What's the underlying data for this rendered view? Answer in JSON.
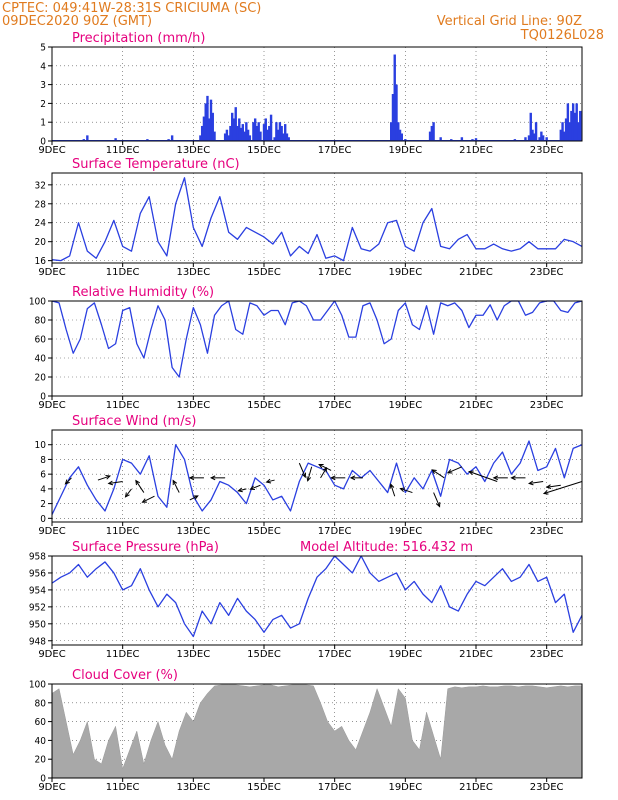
{
  "header": {
    "line1": "CPTEC:   049:41W-28:31S   CRICIUMA (SC)",
    "line2": "09DEC2020 90Z (GMT)",
    "grid_note": "Vertical Grid Line: 90Z",
    "code": "TQ0126L028"
  },
  "colors": {
    "header": "#e07b1f",
    "titles": "#e6007e",
    "series": "#2a3fe0",
    "cloud": "#a8a8a8"
  },
  "x_ticks": [
    "9DEC",
    "11DEC",
    "13DEC",
    "15DEC",
    "17DEC",
    "19DEC",
    "21DEC",
    "23DEC"
  ],
  "chart_data": [
    {
      "id": "precip",
      "type": "bar",
      "title": "Precipitation (mm/h)",
      "ylim": [
        0,
        5
      ],
      "yticks": [
        0,
        1,
        2,
        3,
        4,
        5
      ],
      "x_range_days": [
        9,
        24
      ],
      "x": [
        9.9,
        10.0,
        10.8,
        11.7,
        12.3,
        12.4,
        13.2,
        13.25,
        13.3,
        13.35,
        13.4,
        13.45,
        13.5,
        13.55,
        13.6,
        13.9,
        13.95,
        14.0,
        14.05,
        14.1,
        14.15,
        14.2,
        14.25,
        14.3,
        14.35,
        14.4,
        14.45,
        14.5,
        14.55,
        14.6,
        14.7,
        14.75,
        14.8,
        14.85,
        14.9,
        15.0,
        15.05,
        15.1,
        15.15,
        15.2,
        15.3,
        15.35,
        15.4,
        15.45,
        15.5,
        15.55,
        15.6,
        15.65,
        15.7,
        18.6,
        18.65,
        18.7,
        18.75,
        18.8,
        18.85,
        18.9,
        19.0,
        19.7,
        19.75,
        19.8,
        20.0,
        20.3,
        20.6,
        20.9,
        21.0,
        22.1,
        22.4,
        22.5,
        22.55,
        22.6,
        22.65,
        22.7,
        22.8,
        22.85,
        22.9,
        23.0,
        23.4,
        23.45,
        23.5,
        23.55,
        23.6,
        23.65,
        23.7,
        23.75,
        23.8,
        23.85,
        23.9,
        23.95
      ],
      "values": [
        0.1,
        0.3,
        0.15,
        0.1,
        0.1,
        0.3,
        0.3,
        0.8,
        1.3,
        2.0,
        2.4,
        1.2,
        2.2,
        1.5,
        0.5,
        0.4,
        0.6,
        0.3,
        0.8,
        1.5,
        1.2,
        1.8,
        0.8,
        1.2,
        0.7,
        0.9,
        0.5,
        1.0,
        0.6,
        0.3,
        1.0,
        1.2,
        0.8,
        1.0,
        0.5,
        0.9,
        1.2,
        0.6,
        0.8,
        1.4,
        0.2,
        1.0,
        0.6,
        1.0,
        0.8,
        0.4,
        0.9,
        0.4,
        0.2,
        1.0,
        2.5,
        4.6,
        3.0,
        1.0,
        0.6,
        0.4,
        0.1,
        0.5,
        0.8,
        1.0,
        0.2,
        0.1,
        0.2,
        0.1,
        0.15,
        0.1,
        0.2,
        0.3,
        1.5,
        0.6,
        0.4,
        1.0,
        0.2,
        0.5,
        0.3,
        0.2,
        0.6,
        1.0,
        0.5,
        1.2,
        2.0,
        1.0,
        1.6,
        2.0,
        1.5,
        2.0,
        1.0,
        1.6
      ]
    },
    {
      "id": "temp",
      "type": "line",
      "title": "Surface Temperature (nC)",
      "ylim": [
        15.5,
        34.5
      ],
      "yticks": [
        16,
        20,
        24,
        28,
        32
      ],
      "x": [
        9.0,
        9.25,
        9.5,
        9.75,
        10.0,
        10.25,
        10.5,
        10.75,
        11.0,
        11.25,
        11.5,
        11.75,
        12.0,
        12.25,
        12.5,
        12.75,
        13.0,
        13.25,
        13.5,
        13.75,
        14.0,
        14.25,
        14.5,
        14.75,
        15.0,
        15.25,
        15.5,
        15.75,
        16.0,
        16.25,
        16.5,
        16.75,
        17.0,
        17.25,
        17.5,
        17.75,
        18.0,
        18.25,
        18.5,
        18.75,
        19.0,
        19.25,
        19.5,
        19.75,
        20.0,
        20.25,
        20.5,
        20.75,
        21.0,
        21.25,
        21.5,
        21.75,
        22.0,
        22.25,
        22.5,
        22.75,
        23.0,
        23.25,
        23.5,
        23.75,
        24.0
      ],
      "values": [
        16.2,
        16.0,
        17.0,
        24.0,
        18.0,
        16.5,
        20.0,
        24.5,
        19.0,
        18.0,
        26.0,
        29.5,
        20.0,
        17.0,
        28.0,
        33.5,
        23.0,
        19.0,
        25.0,
        29.5,
        22.0,
        20.5,
        23.0,
        22.0,
        21.0,
        19.5,
        22.0,
        17.0,
        19.0,
        17.5,
        21.5,
        16.5,
        17.0,
        16.0,
        23.0,
        18.5,
        18.0,
        19.5,
        24.0,
        24.5,
        19.0,
        18.0,
        24.0,
        27.0,
        19.0,
        18.5,
        20.5,
        21.5,
        18.5,
        18.5,
        19.5,
        18.5,
        18.0,
        18.5,
        20.0,
        18.5,
        18.5,
        18.5,
        20.5,
        20.0,
        19.0
      ]
    },
    {
      "id": "rh",
      "type": "line",
      "title": "Relative Humidity (%)",
      "ylim": [
        0,
        100
      ],
      "yticks": [
        0,
        20,
        40,
        60,
        80,
        100
      ],
      "x": [
        9.0,
        9.2,
        9.4,
        9.6,
        9.8,
        10.0,
        10.2,
        10.4,
        10.6,
        10.8,
        11.0,
        11.2,
        11.4,
        11.6,
        11.8,
        12.0,
        12.2,
        12.4,
        12.6,
        12.8,
        13.0,
        13.2,
        13.4,
        13.6,
        13.8,
        14.0,
        14.2,
        14.4,
        14.6,
        14.8,
        15.0,
        15.2,
        15.4,
        15.6,
        15.8,
        16.0,
        16.2,
        16.4,
        16.6,
        16.8,
        17.0,
        17.2,
        17.4,
        17.6,
        17.8,
        18.0,
        18.2,
        18.4,
        18.6,
        18.8,
        19.0,
        19.2,
        19.4,
        19.6,
        19.8,
        20.0,
        20.2,
        20.4,
        20.6,
        20.8,
        21.0,
        21.2,
        21.4,
        21.6,
        21.8,
        22.0,
        22.2,
        22.4,
        22.6,
        22.8,
        23.0,
        23.2,
        23.4,
        23.6,
        23.8,
        24.0
      ],
      "values": [
        100,
        98,
        70,
        45,
        60,
        92,
        98,
        75,
        50,
        55,
        90,
        93,
        55,
        40,
        70,
        95,
        80,
        30,
        20,
        60,
        93,
        75,
        45,
        85,
        95,
        100,
        70,
        65,
        98,
        95,
        85,
        90,
        90,
        75,
        98,
        100,
        95,
        80,
        80,
        90,
        100,
        85,
        62,
        62,
        95,
        98,
        80,
        55,
        60,
        90,
        98,
        75,
        70,
        95,
        65,
        98,
        95,
        98,
        90,
        72,
        85,
        85,
        96,
        80,
        95,
        100,
        100,
        85,
        88,
        98,
        100,
        100,
        90,
        88,
        98,
        100
      ]
    },
    {
      "id": "wind",
      "type": "line",
      "title": "Surface Wind (m/s)",
      "ylim": [
        -0.5,
        12
      ],
      "yticks": [
        0,
        2,
        4,
        6,
        8,
        10
      ],
      "x": [
        9.0,
        9.25,
        9.5,
        9.75,
        10.0,
        10.25,
        10.5,
        10.75,
        11.0,
        11.25,
        11.5,
        11.75,
        12.0,
        12.25,
        12.5,
        12.75,
        13.0,
        13.25,
        13.5,
        13.75,
        14.0,
        14.25,
        14.5,
        14.75,
        15.0,
        15.25,
        15.5,
        15.75,
        16.0,
        16.25,
        16.5,
        16.75,
        17.0,
        17.25,
        17.5,
        17.75,
        18.0,
        18.25,
        18.5,
        18.75,
        19.0,
        19.25,
        19.5,
        19.75,
        20.0,
        20.25,
        20.5,
        20.75,
        21.0,
        21.25,
        21.5,
        21.75,
        22.0,
        22.25,
        22.5,
        22.75,
        23.0,
        23.25,
        23.5,
        23.75,
        24.0
      ],
      "values": [
        0.5,
        3.0,
        5.5,
        7.0,
        4.5,
        2.5,
        1.0,
        4.0,
        8.0,
        7.5,
        6.0,
        8.5,
        3.0,
        1.5,
        10.0,
        8.0,
        3.0,
        1.0,
        2.5,
        5.0,
        4.5,
        3.5,
        2.0,
        5.5,
        4.5,
        2.5,
        3.0,
        1.0,
        5.0,
        7.5,
        7.0,
        6.5,
        4.5,
        4.0,
        6.5,
        5.5,
        6.5,
        5.0,
        3.5,
        7.5,
        3.5,
        5.5,
        4.0,
        6.5,
        3.0,
        8.0,
        7.5,
        6.0,
        7.0,
        5.0,
        7.5,
        9.0,
        6.0,
        7.5,
        10.5,
        6.5,
        7.0,
        9.5,
        5.5,
        9.5,
        10.0
      ],
      "arrows": [
        {
          "x": 9.55,
          "y": 5.5,
          "dx": -6,
          "dy": 6
        },
        {
          "x": 10.3,
          "y": 5.2,
          "dx": 12,
          "dy": -4
        },
        {
          "x": 11.0,
          "y": 5.0,
          "dx": -14,
          "dy": 2
        },
        {
          "x": 11.25,
          "y": 4.0,
          "dx": -6,
          "dy": 8
        },
        {
          "x": 11.6,
          "y": 3.5,
          "dx": -8,
          "dy": -12
        },
        {
          "x": 11.9,
          "y": 3.0,
          "dx": -12,
          "dy": 6
        },
        {
          "x": 12.6,
          "y": 3.5,
          "dx": -6,
          "dy": -12
        },
        {
          "x": 12.9,
          "y": 2.5,
          "dx": 8,
          "dy": -4
        },
        {
          "x": 13.3,
          "y": 5.5,
          "dx": -14,
          "dy": 0
        },
        {
          "x": 13.9,
          "y": 5.5,
          "dx": -14,
          "dy": 0
        },
        {
          "x": 14.5,
          "y": 4.0,
          "dx": -8,
          "dy": 2
        },
        {
          "x": 14.9,
          "y": 4.5,
          "dx": -10,
          "dy": 4
        },
        {
          "x": 15.3,
          "y": 5.2,
          "dx": -8,
          "dy": 2
        },
        {
          "x": 16.0,
          "y": 7.5,
          "dx": 6,
          "dy": 14
        },
        {
          "x": 16.35,
          "y": 7.0,
          "dx": -4,
          "dy": 14
        },
        {
          "x": 16.6,
          "y": 5.5,
          "dx": 6,
          "dy": -10
        },
        {
          "x": 16.9,
          "y": 6.5,
          "dx": -12,
          "dy": -6
        },
        {
          "x": 17.3,
          "y": 5.5,
          "dx": -14,
          "dy": 0
        },
        {
          "x": 17.8,
          "y": 5.5,
          "dx": -12,
          "dy": 0
        },
        {
          "x": 18.7,
          "y": 3.0,
          "dx": -4,
          "dy": -12
        },
        {
          "x": 19.2,
          "y": 3.5,
          "dx": -12,
          "dy": -4
        },
        {
          "x": 19.8,
          "y": 3.5,
          "dx": 6,
          "dy": 14
        },
        {
          "x": 20.1,
          "y": 5.5,
          "dx": -12,
          "dy": -8
        },
        {
          "x": 20.6,
          "y": 7.0,
          "dx": -14,
          "dy": 6
        },
        {
          "x": 21.6,
          "y": 5.0,
          "dx": -28,
          "dy": -10
        },
        {
          "x": 21.9,
          "y": 5.5,
          "dx": -14,
          "dy": 0
        },
        {
          "x": 22.4,
          "y": 5.5,
          "dx": -14,
          "dy": 0
        },
        {
          "x": 22.9,
          "y": 5.0,
          "dx": -14,
          "dy": 2
        },
        {
          "x": 23.4,
          "y": 4.5,
          "dx": -14,
          "dy": 2
        },
        {
          "x": 24.0,
          "y": 5.0,
          "dx": -38,
          "dy": 12
        }
      ]
    },
    {
      "id": "pressure",
      "type": "line",
      "title": "Surface Pressure (hPa)",
      "subtitle": "Model Altitude: 516.432 m",
      "ylim": [
        947.5,
        958
      ],
      "yticks": [
        948,
        950,
        952,
        954,
        956,
        958
      ],
      "x": [
        9.0,
        9.25,
        9.5,
        9.75,
        10.0,
        10.25,
        10.5,
        10.75,
        11.0,
        11.25,
        11.5,
        11.75,
        12.0,
        12.25,
        12.5,
        12.75,
        13.0,
        13.25,
        13.5,
        13.75,
        14.0,
        14.25,
        14.5,
        14.75,
        15.0,
        15.25,
        15.5,
        15.75,
        16.0,
        16.25,
        16.5,
        16.75,
        17.0,
        17.25,
        17.5,
        17.75,
        18.0,
        18.25,
        18.5,
        18.75,
        19.0,
        19.25,
        19.5,
        19.75,
        20.0,
        20.25,
        20.5,
        20.75,
        21.0,
        21.25,
        21.5,
        21.75,
        22.0,
        22.25,
        22.5,
        22.75,
        23.0,
        23.25,
        23.5,
        23.75,
        24.0
      ],
      "values": [
        954.8,
        955.5,
        956.0,
        957.0,
        955.5,
        956.5,
        957.3,
        956.0,
        954.0,
        954.5,
        956.5,
        954.0,
        952.0,
        953.5,
        952.5,
        950.0,
        948.5,
        951.5,
        950.0,
        952.5,
        951.0,
        953.0,
        951.5,
        950.5,
        949.0,
        950.5,
        951.0,
        949.5,
        950.0,
        953.0,
        955.5,
        956.5,
        958.0,
        957.0,
        956.0,
        958.0,
        956.0,
        955.0,
        955.5,
        956.0,
        954.0,
        955.0,
        953.5,
        952.5,
        954.5,
        952.0,
        951.5,
        953.5,
        955.0,
        954.5,
        955.5,
        956.5,
        955.0,
        955.5,
        957.0,
        955.0,
        955.5,
        952.5,
        953.5,
        949.0,
        951.0
      ]
    },
    {
      "id": "cloud",
      "type": "area",
      "title": "Cloud Cover (%)",
      "ylim": [
        0,
        100
      ],
      "yticks": [
        0,
        20,
        40,
        60,
        80,
        100
      ],
      "x": [
        9.0,
        9.2,
        9.4,
        9.6,
        9.8,
        10.0,
        10.2,
        10.4,
        10.6,
        10.8,
        11.0,
        11.2,
        11.4,
        11.6,
        11.8,
        12.0,
        12.2,
        12.4,
        12.6,
        12.8,
        13.0,
        13.2,
        13.4,
        13.6,
        13.8,
        14.0,
        14.2,
        14.4,
        14.6,
        14.8,
        15.0,
        15.2,
        15.4,
        15.6,
        15.8,
        16.0,
        16.2,
        16.4,
        16.6,
        16.8,
        17.0,
        17.2,
        17.4,
        17.6,
        17.8,
        18.0,
        18.2,
        18.4,
        18.6,
        18.8,
        19.0,
        19.2,
        19.4,
        19.6,
        19.8,
        20.0,
        20.2,
        20.4,
        20.6,
        20.8,
        21.0,
        21.2,
        21.4,
        21.6,
        21.8,
        22.0,
        22.2,
        22.4,
        22.6,
        22.8,
        23.0,
        23.2,
        23.4,
        23.6,
        23.8,
        24.0
      ],
      "values": [
        90,
        95,
        60,
        25,
        40,
        60,
        20,
        15,
        40,
        55,
        10,
        30,
        50,
        15,
        40,
        60,
        35,
        20,
        50,
        70,
        60,
        80,
        90,
        98,
        99,
        99,
        99,
        98,
        97,
        98,
        99,
        99,
        97,
        98,
        99,
        99,
        99,
        98,
        80,
        60,
        50,
        55,
        40,
        30,
        50,
        70,
        95,
        75,
        55,
        95,
        85,
        40,
        30,
        70,
        45,
        20,
        95,
        97,
        96,
        97,
        97,
        98,
        97,
        97,
        98,
        98,
        97,
        98,
        98,
        97,
        96,
        97,
        98,
        97,
        98,
        98
      ]
    }
  ]
}
